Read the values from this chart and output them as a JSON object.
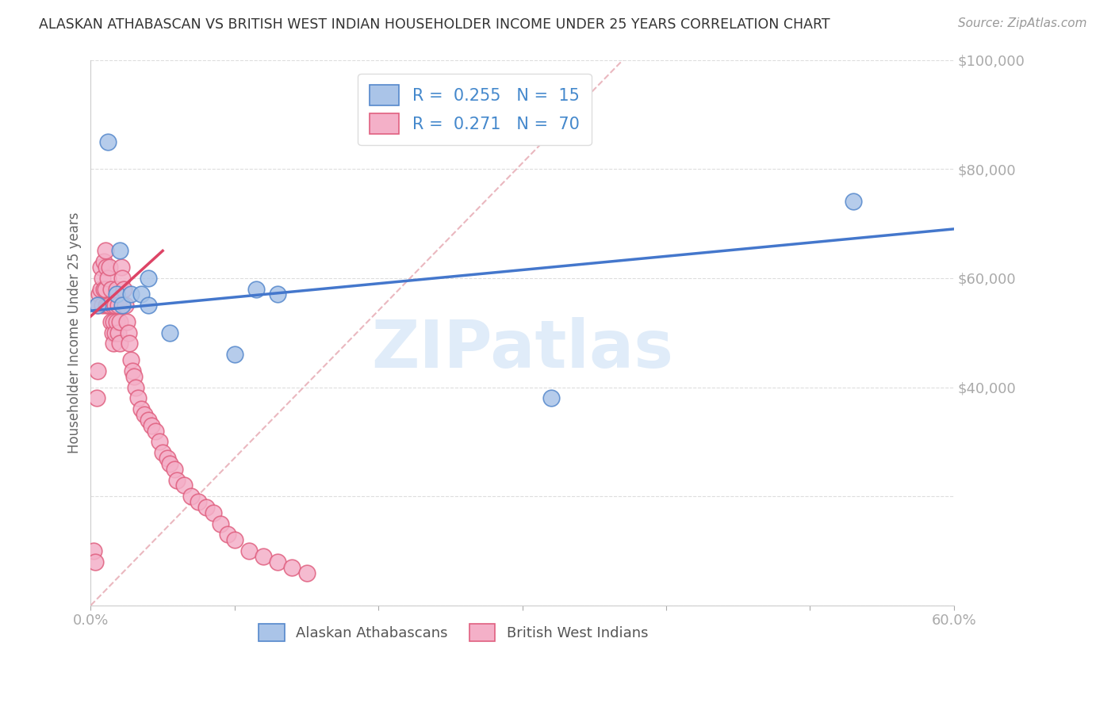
{
  "title": "ALASKAN ATHABASCAN VS BRITISH WEST INDIAN HOUSEHOLDER INCOME UNDER 25 YEARS CORRELATION CHART",
  "source": "Source: ZipAtlas.com",
  "ylabel": "Householder Income Under 25 years",
  "xlim": [
    0,
    0.6
  ],
  "ylim": [
    0,
    100000
  ],
  "watermark": "ZIPatlas",
  "legend_blue_r": "0.255",
  "legend_blue_n": "15",
  "legend_pink_r": "0.271",
  "legend_pink_n": "70",
  "blue_color": "#aac4e8",
  "pink_color": "#f4b0c8",
  "blue_edge_color": "#5588cc",
  "pink_edge_color": "#e06080",
  "blue_line_color": "#4477cc",
  "pink_line_color": "#dd4466",
  "ref_line_color": "#e8b0b8",
  "axis_label_color": "#4488cc",
  "title_color": "#333333",
  "blue_scatter_x": [
    0.005,
    0.012,
    0.018,
    0.02,
    0.022,
    0.028,
    0.035,
    0.04,
    0.04,
    0.055,
    0.1,
    0.115,
    0.13,
    0.32,
    0.53
  ],
  "blue_scatter_y": [
    55000,
    85000,
    57000,
    65000,
    55000,
    57000,
    57000,
    60000,
    55000,
    50000,
    46000,
    58000,
    57000,
    38000,
    74000
  ],
  "pink_scatter_x": [
    0.002,
    0.003,
    0.004,
    0.005,
    0.005,
    0.006,
    0.007,
    0.007,
    0.008,
    0.008,
    0.009,
    0.009,
    0.01,
    0.01,
    0.011,
    0.011,
    0.012,
    0.012,
    0.013,
    0.013,
    0.014,
    0.014,
    0.015,
    0.015,
    0.016,
    0.016,
    0.017,
    0.017,
    0.018,
    0.018,
    0.019,
    0.019,
    0.02,
    0.02,
    0.021,
    0.022,
    0.023,
    0.024,
    0.025,
    0.026,
    0.027,
    0.028,
    0.029,
    0.03,
    0.031,
    0.033,
    0.035,
    0.037,
    0.04,
    0.042,
    0.045,
    0.048,
    0.05,
    0.053,
    0.055,
    0.058,
    0.06,
    0.065,
    0.07,
    0.075,
    0.08,
    0.085,
    0.09,
    0.095,
    0.1,
    0.11,
    0.12,
    0.13,
    0.14,
    0.15
  ],
  "pink_scatter_y": [
    10000,
    8000,
    38000,
    43000,
    55000,
    57000,
    58000,
    62000,
    60000,
    55000,
    58000,
    63000,
    65000,
    58000,
    62000,
    55000,
    55000,
    60000,
    62000,
    55000,
    58000,
    52000,
    55000,
    50000,
    52000,
    48000,
    50000,
    55000,
    52000,
    58000,
    55000,
    50000,
    52000,
    48000,
    62000,
    60000,
    58000,
    55000,
    52000,
    50000,
    48000,
    45000,
    43000,
    42000,
    40000,
    38000,
    36000,
    35000,
    34000,
    33000,
    32000,
    30000,
    28000,
    27000,
    26000,
    25000,
    23000,
    22000,
    20000,
    19000,
    18000,
    17000,
    15000,
    13000,
    12000,
    10000,
    9000,
    8000,
    7000,
    6000
  ],
  "pink_line_x": [
    0.0,
    0.05
  ],
  "pink_line_y": [
    53000,
    65000
  ],
  "blue_line_x": [
    0.0,
    0.6
  ],
  "blue_line_y": [
    54000,
    69000
  ],
  "ref_line_x": [
    0.0,
    0.37
  ],
  "ref_line_y": [
    0,
    100000
  ]
}
